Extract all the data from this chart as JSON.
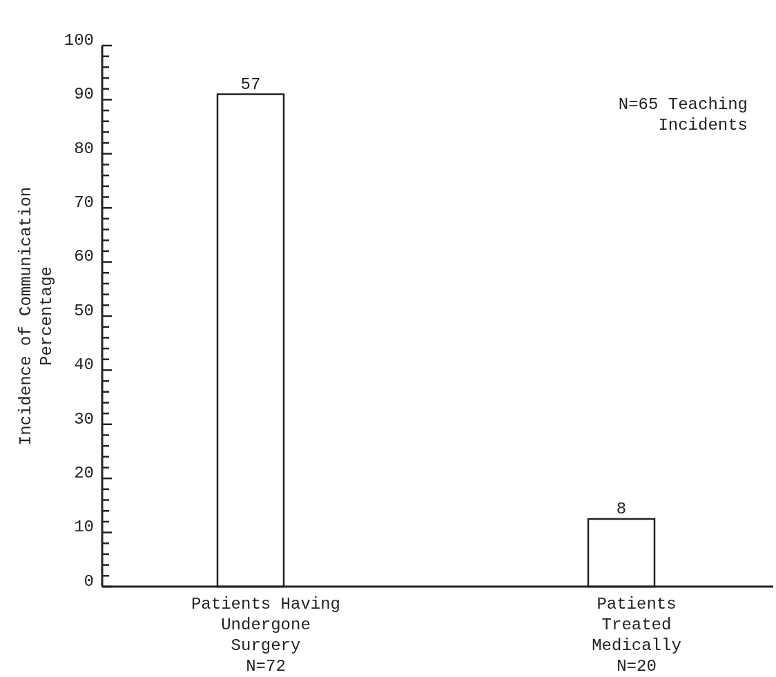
{
  "chart_data": {
    "type": "bar",
    "ylabel": "Incidence of Communication\nPercentage",
    "categories": [
      "Patients Having\nUndergone\nSurgery\nN=72",
      "Patients\nTreated\nMedically\nN=20"
    ],
    "values": [
      91,
      12.5
    ],
    "color": "#ffffff",
    "ylim": [
      0,
      100
    ],
    "yticks": [
      0,
      {
        "value": 2,
        "label": null
      },
      {
        "value": 4,
        "label": null
      },
      {
        "value": 6,
        "label": null
      },
      {
        "value": 8,
        "label": null
      },
      10,
      {
        "value": 12,
        "label": null
      },
      {
        "value": 14,
        "label": null
      },
      {
        "value": 16,
        "label": null
      },
      {
        "value": 18,
        "label": null
      },
      20,
      {
        "value": 22,
        "label": null
      },
      {
        "value": 24,
        "label": null
      },
      {
        "value": 26,
        "label": null
      },
      {
        "value": 28,
        "label": null
      },
      30,
      {
        "value": 32,
        "label": null
      },
      {
        "value": 34,
        "label": null
      },
      {
        "value": 36,
        "label": null
      },
      {
        "value": 38,
        "label": null
      },
      40,
      {
        "value": 42,
        "label": null
      },
      {
        "value": 44,
        "label": null
      },
      {
        "value": 46,
        "label": null
      },
      {
        "value": 48,
        "label": null
      },
      50,
      {
        "value": 52,
        "label": null
      },
      {
        "value": 54,
        "label": null
      },
      {
        "value": 56,
        "label": null
      },
      {
        "value": 58,
        "label": null
      },
      60,
      {
        "value": 62,
        "label": null
      },
      {
        "value": 64,
        "label": null
      },
      {
        "value": 66,
        "label": null
      },
      {
        "value": 68,
        "label": null
      },
      70,
      {
        "value": 72,
        "label": null
      },
      {
        "value": 74,
        "label": null
      },
      {
        "value": 76,
        "label": null
      },
      {
        "value": 78,
        "label": null
      },
      80,
      {
        "value": 82,
        "label": null
      },
      {
        "value": 84,
        "label": null
      },
      {
        "value": 86,
        "label": null
      },
      {
        "value": 88,
        "label": null
      },
      90,
      {
        "value": 92,
        "label": null
      },
      {
        "value": 94,
        "label": null
      },
      {
        "value": 96,
        "label": null
      },
      {
        "value": 98,
        "label": null
      },
      100
    ],
    "annotations": [
      "N=65 Teaching\nIncidents",
      {
        "text": "57",
        "x": "Patients Having\nUndergone\nSurgery\nN=72",
        "y": 91
      },
      {
        "text": "8",
        "x": "Patients\nTreated\nMedically\nN=20",
        "y": 12.5
      }
    ],
    "grid": false
  }
}
